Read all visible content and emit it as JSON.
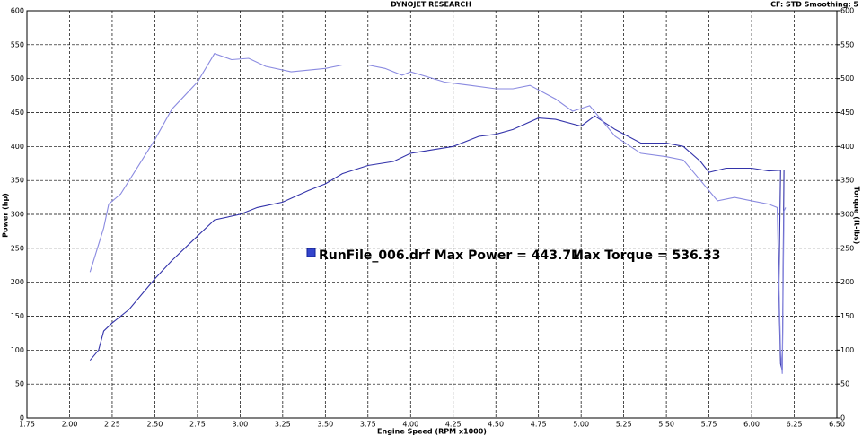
{
  "chart_data": {
    "type": "line",
    "title": "DYNOJET RESEARCH",
    "subtitle": "CF: STD  Smoothing: 5",
    "x_label": "Engine Speed (RPM x1000)",
    "y_label": "Power (hp)",
    "y2_label": "Torque (ft-lbs)",
    "legend_text": [
      "RunFile_006.drf Max Power = 443.71",
      "Max Torque = 536.33"
    ],
    "legend_color": "#3344cc",
    "xlim": [
      1.75,
      6.5
    ],
    "xticks": [
      1.75,
      {
        "value": 2,
        "label": "2.00"
      },
      2.25,
      {
        "value": 2.5,
        "label": "2.50"
      },
      2.75,
      {
        "value": 3,
        "label": "3.00"
      },
      3.25,
      {
        "value": 3.5,
        "label": "3.50"
      },
      3.75,
      {
        "value": 4,
        "label": "4.00"
      },
      4.25,
      {
        "value": 4.5,
        "label": "4.50"
      },
      4.75,
      {
        "value": 5,
        "label": "5.00"
      },
      5.25,
      {
        "value": 5.5,
        "label": "5.50"
      },
      5.75,
      {
        "value": 6,
        "label": "6.00"
      },
      6.25,
      {
        "value": 6.5,
        "label": "6.50"
      }
    ],
    "ylim": [
      0,
      600
    ],
    "yticks": [
      0,
      50,
      100,
      150,
      200,
      250,
      300,
      350,
      400,
      450,
      500,
      550,
      600
    ],
    "y2lim": [
      0,
      600
    ],
    "y2ticks": [
      0,
      50,
      100,
      150,
      200,
      250,
      300,
      350,
      400,
      450,
      500,
      550,
      600
    ],
    "grid": true,
    "series": [
      {
        "color": "#3333aa",
        "axis": "y",
        "x": [
          2.12,
          2.17,
          2.2,
          2.25,
          2.35,
          2.5,
          2.6,
          2.75,
          2.85,
          3.0,
          3.1,
          3.25,
          3.4,
          3.5,
          3.6,
          3.75,
          3.9,
          4.0,
          4.25,
          4.4,
          4.5,
          4.6,
          4.75,
          4.85,
          5.0,
          5.08,
          5.2,
          5.35,
          5.5,
          5.6,
          5.7,
          5.75,
          5.85,
          6.0,
          6.1,
          6.17,
          6.16,
          6.17,
          6.18,
          6.19
        ],
        "values": [
          85,
          100,
          128,
          140,
          160,
          205,
          232,
          268,
          292,
          300,
          310,
          318,
          335,
          345,
          360,
          372,
          378,
          390,
          400,
          415,
          418,
          425,
          442,
          440,
          430,
          445,
          425,
          405,
          405,
          400,
          378,
          362,
          368,
          368,
          364,
          365,
          185,
          80,
          70,
          365
        ]
      },
      {
        "color": "#8a8ae0",
        "axis": "y2",
        "x": [
          2.12,
          2.2,
          2.23,
          2.3,
          2.5,
          2.6,
          2.75,
          2.85,
          2.95,
          3.05,
          3.15,
          3.3,
          3.5,
          3.6,
          3.75,
          3.85,
          3.95,
          4.0,
          4.2,
          4.35,
          4.5,
          4.6,
          4.7,
          4.85,
          4.95,
          5.05,
          5.2,
          5.35,
          5.5,
          5.6,
          5.7,
          5.8,
          5.9,
          6.0,
          6.1,
          6.15,
          6.17,
          6.18,
          6.19,
          6.2
        ],
        "values": [
          215,
          280,
          315,
          330,
          410,
          455,
          495,
          537,
          528,
          530,
          518,
          510,
          515,
          520,
          520,
          515,
          505,
          510,
          495,
          490,
          485,
          485,
          490,
          470,
          452,
          460,
          415,
          390,
          385,
          380,
          350,
          320,
          325,
          320,
          315,
          310,
          100,
          65,
          305,
          310
        ]
      }
    ]
  }
}
